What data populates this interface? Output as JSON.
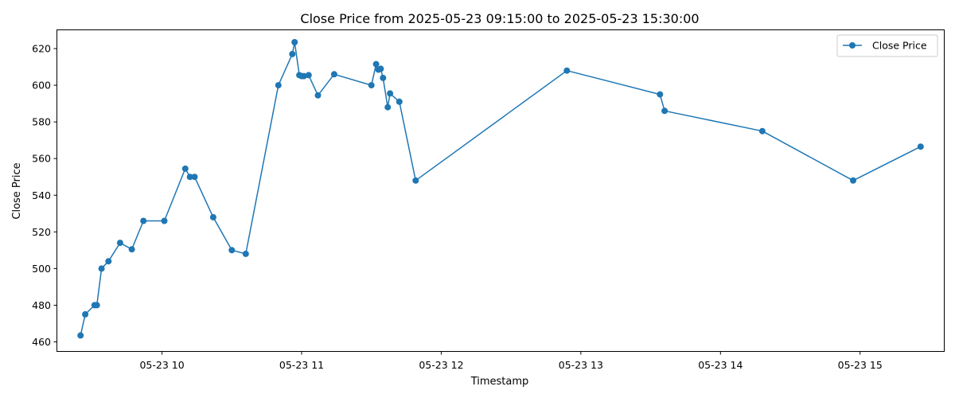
{
  "chart_data": {
    "type": "line",
    "title": "Close Price from 2025-05-23 09:15:00 to 2025-05-23 15:30:00",
    "xlabel": "Timestamp",
    "ylabel": "Close Price",
    "x_range": [
      "2025-05-23 09:15",
      "2025-05-23 15:36"
    ],
    "ylim": [
      455,
      630
    ],
    "x_ticks": [
      {
        "time": "2025-05-23 10:00",
        "label": "05-23 10"
      },
      {
        "time": "2025-05-23 11:00",
        "label": "05-23 11"
      },
      {
        "time": "2025-05-23 12:00",
        "label": "05-23 12"
      },
      {
        "time": "2025-05-23 13:00",
        "label": "05-23 13"
      },
      {
        "time": "2025-05-23 14:00",
        "label": "05-23 14"
      },
      {
        "time": "2025-05-23 15:00",
        "label": "05-23 15"
      }
    ],
    "y_ticks": [
      460,
      480,
      500,
      520,
      540,
      560,
      580,
      600,
      620
    ],
    "grid": false,
    "legend": {
      "position": "top-right"
    },
    "color": "#1f77b4",
    "series": [
      {
        "name": "Close Price",
        "points": [
          {
            "x": "2025-05-23 09:25",
            "y": 463.5
          },
          {
            "x": "2025-05-23 09:27",
            "y": 475
          },
          {
            "x": "2025-05-23 09:31",
            "y": 480
          },
          {
            "x": "2025-05-23 09:32",
            "y": 480
          },
          {
            "x": "2025-05-23 09:34",
            "y": 500
          },
          {
            "x": "2025-05-23 09:37",
            "y": 504
          },
          {
            "x": "2025-05-23 09:42",
            "y": 514
          },
          {
            "x": "2025-05-23 09:47",
            "y": 510.5
          },
          {
            "x": "2025-05-23 09:52",
            "y": 526
          },
          {
            "x": "2025-05-23 10:01",
            "y": 526
          },
          {
            "x": "2025-05-23 10:10",
            "y": 554.5
          },
          {
            "x": "2025-05-23 10:12",
            "y": 550
          },
          {
            "x": "2025-05-23 10:14",
            "y": 550
          },
          {
            "x": "2025-05-23 10:22",
            "y": 528
          },
          {
            "x": "2025-05-23 10:30",
            "y": 510
          },
          {
            "x": "2025-05-23 10:36",
            "y": 508
          },
          {
            "x": "2025-05-23 10:50",
            "y": 600
          },
          {
            "x": "2025-05-23 10:56",
            "y": 617
          },
          {
            "x": "2025-05-23 10:57",
            "y": 623.5
          },
          {
            "x": "2025-05-23 10:59",
            "y": 605.5
          },
          {
            "x": "2025-05-23 11:00",
            "y": 605
          },
          {
            "x": "2025-05-23 11:01",
            "y": 605
          },
          {
            "x": "2025-05-23 11:03",
            "y": 605.5
          },
          {
            "x": "2025-05-23 11:07",
            "y": 594.5
          },
          {
            "x": "2025-05-23 11:14",
            "y": 606
          },
          {
            "x": "2025-05-23 11:30",
            "y": 600
          },
          {
            "x": "2025-05-23 11:32",
            "y": 611.5
          },
          {
            "x": "2025-05-23 11:33",
            "y": 608.5
          },
          {
            "x": "2025-05-23 11:34",
            "y": 609
          },
          {
            "x": "2025-05-23 11:35",
            "y": 604
          },
          {
            "x": "2025-05-23 11:37",
            "y": 588
          },
          {
            "x": "2025-05-23 11:38",
            "y": 595.5
          },
          {
            "x": "2025-05-23 11:42",
            "y": 591
          },
          {
            "x": "2025-05-23 11:49",
            "y": 548
          },
          {
            "x": "2025-05-23 12:54",
            "y": 608
          },
          {
            "x": "2025-05-23 13:34",
            "y": 595
          },
          {
            "x": "2025-05-23 13:36",
            "y": 586
          },
          {
            "x": "2025-05-23 14:18",
            "y": 575
          },
          {
            "x": "2025-05-23 14:57",
            "y": 548
          },
          {
            "x": "2025-05-23 15:26",
            "y": 566.5
          }
        ]
      }
    ]
  }
}
